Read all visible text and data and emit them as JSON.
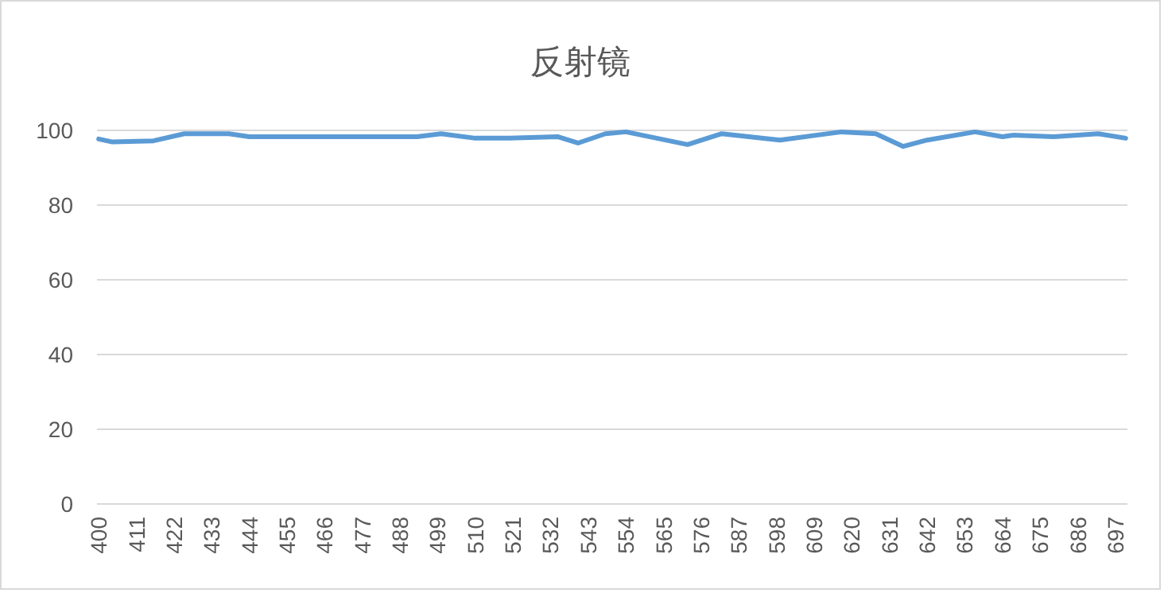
{
  "chart_data": {
    "type": "line",
    "title": "反射镜",
    "x": [
      400,
      404,
      416,
      425,
      438,
      444,
      493,
      500,
      510,
      520,
      534,
      540,
      548,
      554,
      572,
      582,
      599,
      617,
      627,
      635,
      642,
      656,
      664,
      667,
      679,
      692,
      700
    ],
    "series": [
      {
        "color": "#5b9bd5",
        "values": [
          97.7,
          96.9,
          97.2,
          99.1,
          99.1,
          98.3,
          98.3,
          99.1,
          97.9,
          97.9,
          98.3,
          96.6,
          99.1,
          99.6,
          96.2,
          99.1,
          97.4,
          99.6,
          99.1,
          95.7,
          97.4,
          99.6,
          98.3,
          98.7,
          98.3,
          99.1,
          97.9
        ]
      }
    ],
    "xlim": [
      399.5,
      700.5
    ],
    "xticks": [
      400,
      411,
      422,
      433,
      444,
      455,
      466,
      477,
      488,
      499,
      510,
      521,
      532,
      543,
      554,
      565,
      576,
      587,
      598,
      609,
      620,
      631,
      642,
      653,
      664,
      675,
      686,
      697
    ],
    "ylim": [
      0,
      100
    ],
    "yticks": [
      0,
      20,
      40,
      60,
      80,
      100
    ],
    "grid": "y",
    "marker": "none",
    "line_style": "solid"
  }
}
